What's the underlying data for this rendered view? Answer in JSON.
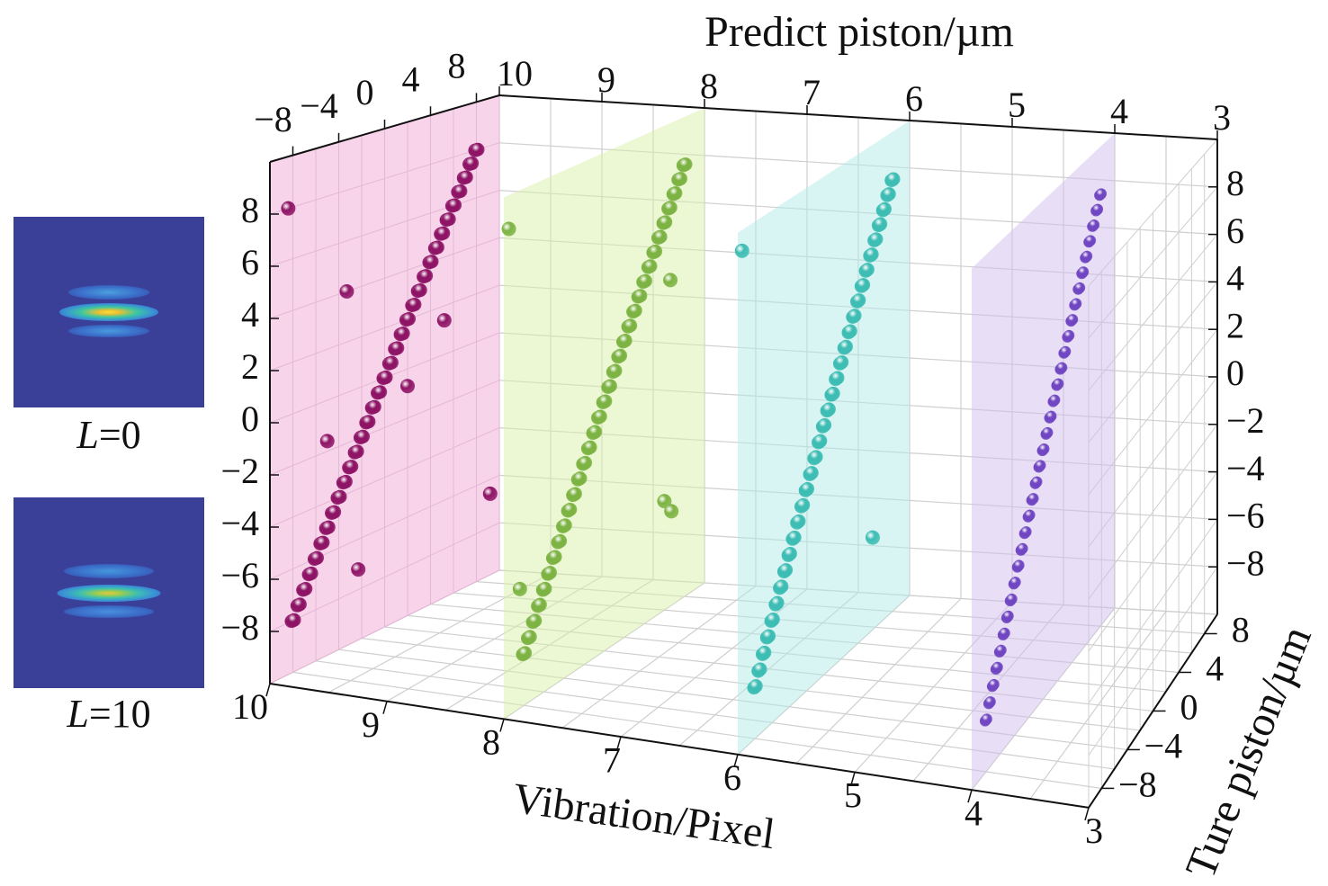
{
  "insets": [
    {
      "var": "L",
      "value": "=0",
      "peak_color": "#f5e23a"
    },
    {
      "var": "L",
      "value": "=10",
      "peak_color": "#e8c640"
    }
  ],
  "chart_data": {
    "type": "scatter",
    "subtype": "3d-scatter",
    "axes": {
      "vibration": {
        "title": "Vibration/Pixel",
        "range": [
          10,
          3
        ],
        "ticks": [
          "10",
          "9",
          "8",
          "7",
          "6",
          "5",
          "4",
          "3"
        ]
      },
      "top_axis": {
        "title": "Predict piston/µm",
        "ticks": [
          "10",
          "9",
          "8",
          "7",
          "6",
          "5",
          "4",
          "3"
        ]
      },
      "predict": {
        "range": [
          -10,
          10
        ],
        "ticks_left": [
          "8",
          "6",
          "4",
          "2",
          "0",
          "−2",
          "−4",
          "−6",
          "−8"
        ],
        "ticks_right": [
          "8",
          "6",
          "4",
          "2",
          "0",
          "−2",
          "−4",
          "−6",
          "−8"
        ]
      },
      "true_piston": {
        "title": "Ture piston/µm",
        "range": [
          -10,
          10
        ],
        "ticks": [
          "−8",
          "−4",
          "0",
          "4",
          "8"
        ],
        "ticks_top": [
          "−8",
          "−4",
          "0",
          "4",
          "8"
        ]
      }
    },
    "grid": true,
    "series": [
      {
        "vibration": 10,
        "plane_color": "#f2a9d8",
        "point_color": "#8e1466",
        "points": [
          [
            -8,
            -8
          ],
          [
            -7.5,
            -7.5
          ],
          [
            -7,
            -7
          ],
          [
            -6.5,
            -6.5
          ],
          [
            -6,
            -6
          ],
          [
            -5.5,
            -5.5
          ],
          [
            -5,
            -5
          ],
          [
            -4.5,
            -4.5
          ],
          [
            -4,
            -4
          ],
          [
            -3.5,
            -3.5
          ],
          [
            -3,
            -3
          ],
          [
            -2.5,
            -2.5
          ],
          [
            -2,
            -2
          ],
          [
            -1.5,
            -1.5
          ],
          [
            -1,
            -1
          ],
          [
            -0.5,
            -0.5
          ],
          [
            0,
            0
          ],
          [
            0.5,
            0.5
          ],
          [
            1,
            1
          ],
          [
            1.5,
            1.5
          ],
          [
            2,
            2
          ],
          [
            2.5,
            2.5
          ],
          [
            3,
            3
          ],
          [
            3.5,
            3.5
          ],
          [
            4,
            4
          ],
          [
            4.5,
            4.5
          ],
          [
            5,
            5
          ],
          [
            5.5,
            5.5
          ],
          [
            6,
            6
          ],
          [
            6.5,
            6.5
          ],
          [
            7,
            7
          ],
          [
            7.5,
            7.5
          ],
          [
            8,
            8
          ]
        ],
        "outliers": [
          [
            -8.4,
            8
          ],
          [
            -3.3,
            4
          ],
          [
            -5,
            -1.6
          ],
          [
            5.2,
            1.4
          ],
          [
            9.2,
            -6.6
          ],
          [
            -2.3,
            -7.2
          ],
          [
            2,
            -0.7
          ]
        ]
      },
      {
        "vibration": 8,
        "plane_color": "#d9f0a8",
        "point_color": "#7cb342",
        "points": [
          [
            -8,
            -8
          ],
          [
            -7.5,
            -7.5
          ],
          [
            -7,
            -7
          ],
          [
            -6.5,
            -6.5
          ],
          [
            -6,
            -6
          ],
          [
            -5.5,
            -5.5
          ],
          [
            -5,
            -5
          ],
          [
            -4.5,
            -4.5
          ],
          [
            -4,
            -4
          ],
          [
            -3.5,
            -3.5
          ],
          [
            -3,
            -3
          ],
          [
            -2.5,
            -2.5
          ],
          [
            -2,
            -2
          ],
          [
            -1.5,
            -1.5
          ],
          [
            -1,
            -1
          ],
          [
            -0.5,
            -0.5
          ],
          [
            0,
            0
          ],
          [
            0.5,
            0.5
          ],
          [
            1,
            1
          ],
          [
            1.5,
            1.5
          ],
          [
            2,
            2
          ],
          [
            2.5,
            2.5
          ],
          [
            3,
            3
          ],
          [
            3.5,
            3.5
          ],
          [
            4,
            4
          ],
          [
            4.5,
            4.5
          ],
          [
            5,
            5
          ],
          [
            5.5,
            5.5
          ],
          [
            6,
            6
          ],
          [
            6.5,
            6.5
          ],
          [
            7,
            7
          ],
          [
            7.5,
            7.5
          ],
          [
            8,
            8
          ]
        ],
        "outliers": [
          [
            -9.5,
            8.7
          ],
          [
            6.6,
            3.5
          ],
          [
            6,
            -5.5
          ],
          [
            6.7,
            -6.1
          ],
          [
            -8.4,
            -5.4
          ]
        ]
      },
      {
        "vibration": 6,
        "plane_color": "#b4ece8",
        "point_color": "#3dbdb4",
        "points": [
          [
            -8,
            -8
          ],
          [
            -7.5,
            -7.5
          ],
          [
            -7,
            -7
          ],
          [
            -6.5,
            -6.5
          ],
          [
            -6,
            -6
          ],
          [
            -5.5,
            -5.5
          ],
          [
            -5,
            -5
          ],
          [
            -4.5,
            -4.5
          ],
          [
            -4,
            -4
          ],
          [
            -3.5,
            -3.5
          ],
          [
            -3,
            -3
          ],
          [
            -2.5,
            -2.5
          ],
          [
            -2,
            -2
          ],
          [
            -1.5,
            -1.5
          ],
          [
            -1,
            -1
          ],
          [
            -0.5,
            -0.5
          ],
          [
            0,
            0
          ],
          [
            0.5,
            0.5
          ],
          [
            1,
            1
          ],
          [
            1.5,
            1.5
          ],
          [
            2,
            2
          ],
          [
            2.5,
            2.5
          ],
          [
            3,
            3
          ],
          [
            3.5,
            3.5
          ],
          [
            4,
            4
          ],
          [
            4.5,
            4.5
          ],
          [
            5,
            5
          ],
          [
            5.5,
            5.5
          ],
          [
            6,
            6
          ],
          [
            6.5,
            6.5
          ],
          [
            7,
            7
          ],
          [
            7.5,
            7.5
          ],
          [
            8,
            8
          ]
        ],
        "outliers": [
          [
            -9.5,
            9.2
          ],
          [
            5.7,
            -6.2
          ]
        ]
      },
      {
        "vibration": 4,
        "plane_color": "#d2bdee",
        "point_color": "#7046c2",
        "points": [
          [
            -8,
            -8
          ],
          [
            -7.5,
            -7.5
          ],
          [
            -7,
            -7
          ],
          [
            -6.5,
            -6.5
          ],
          [
            -6,
            -6
          ],
          [
            -5.5,
            -5.5
          ],
          [
            -5,
            -5
          ],
          [
            -4.5,
            -4.5
          ],
          [
            -4,
            -4
          ],
          [
            -3.5,
            -3.5
          ],
          [
            -3,
            -3
          ],
          [
            -2.5,
            -2.5
          ],
          [
            -2,
            -2
          ],
          [
            -1.5,
            -1.5
          ],
          [
            -1,
            -1
          ],
          [
            -0.5,
            -0.5
          ],
          [
            0,
            0
          ],
          [
            0.5,
            0.5
          ],
          [
            1,
            1
          ],
          [
            1.5,
            1.5
          ],
          [
            2,
            2
          ],
          [
            2.5,
            2.5
          ],
          [
            3,
            3
          ],
          [
            3.5,
            3.5
          ],
          [
            4,
            4
          ],
          [
            4.5,
            4.5
          ],
          [
            5,
            5
          ],
          [
            5.5,
            5.5
          ],
          [
            6,
            6
          ],
          [
            6.5,
            6.5
          ],
          [
            7,
            7
          ],
          [
            7.5,
            7.5
          ],
          [
            8,
            8
          ]
        ],
        "outliers": []
      }
    ]
  }
}
